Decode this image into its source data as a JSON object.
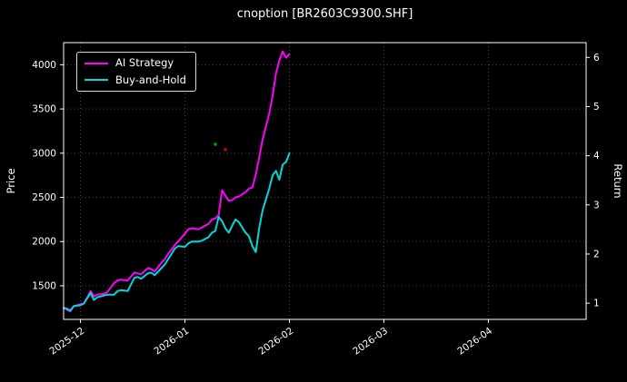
{
  "title": "cnoption [BR2603C9300.SHF]",
  "colors": {
    "background": "#000000",
    "axis": "#ffffff",
    "grid": "#4a4a4a",
    "text": "#ffffff",
    "ai_strategy": "#ff00ff",
    "buy_and_hold": "#00d8dc"
  },
  "axes": {
    "left_label": "Price",
    "right_label": "Return",
    "left_ticks": [
      1500,
      2000,
      2500,
      3000,
      3500,
      4000
    ],
    "right_ticks": [
      1,
      2,
      3,
      4,
      5,
      6
    ],
    "x_ticks": [
      {
        "label": "2025-12",
        "day": 5
      },
      {
        "label": "2026-01",
        "day": 36
      },
      {
        "label": "2026-02",
        "day": 67
      },
      {
        "label": "2026-03",
        "day": 95
      },
      {
        "label": "2026-04",
        "day": 126
      }
    ]
  },
  "chart_data": {
    "type": "line",
    "title": "cnoption [BR2603C9300.SHF]",
    "xlabel": "",
    "ylabel_left": "Price",
    "ylabel_right": "Return",
    "x_unit": "days since 2025-11-26",
    "x_day_range": [
      0,
      155
    ],
    "price_range": [
      1120,
      4250
    ],
    "return_range": [
      0.67,
      6.3
    ],
    "grid": "dotted",
    "legend_position": "upper-left",
    "series": [
      {
        "name": "AI Strategy",
        "axis": "left",
        "color": "#ff00ff",
        "points": [
          [
            0,
            1250
          ],
          [
            1,
            1230
          ],
          [
            2,
            1210
          ],
          [
            3,
            1270
          ],
          [
            5,
            1290
          ],
          [
            6,
            1300
          ],
          [
            8,
            1440
          ],
          [
            9,
            1380
          ],
          [
            10,
            1400
          ],
          [
            12,
            1410
          ],
          [
            13,
            1430
          ],
          [
            15,
            1530
          ],
          [
            16,
            1560
          ],
          [
            17,
            1570
          ],
          [
            19,
            1560
          ],
          [
            21,
            1650
          ],
          [
            22,
            1640
          ],
          [
            23,
            1630
          ],
          [
            25,
            1700
          ],
          [
            26,
            1690
          ],
          [
            27,
            1660
          ],
          [
            29,
            1760
          ],
          [
            30,
            1800
          ],
          [
            31,
            1860
          ],
          [
            33,
            1960
          ],
          [
            34,
            2000
          ],
          [
            36,
            2090
          ],
          [
            37,
            2140
          ],
          [
            38,
            2150
          ],
          [
            40,
            2140
          ],
          [
            41,
            2160
          ],
          [
            43,
            2200
          ],
          [
            44,
            2250
          ],
          [
            45,
            2260
          ],
          [
            46,
            2300
          ],
          [
            47,
            2580
          ],
          [
            48,
            2520
          ],
          [
            49,
            2460
          ],
          [
            50,
            2470
          ],
          [
            51,
            2500
          ],
          [
            52,
            2510
          ],
          [
            54,
            2560
          ],
          [
            55,
            2600
          ],
          [
            56,
            2610
          ],
          [
            57,
            2760
          ],
          [
            58,
            2950
          ],
          [
            59,
            3150
          ],
          [
            61,
            3450
          ],
          [
            62,
            3650
          ],
          [
            63,
            3900
          ],
          [
            64,
            4050
          ],
          [
            65,
            4150
          ],
          [
            66,
            4080
          ],
          [
            67,
            4120
          ]
        ]
      },
      {
        "name": "Buy-and-Hold",
        "axis": "left",
        "color": "#00d8dc",
        "points": [
          [
            0,
            1250
          ],
          [
            1,
            1240
          ],
          [
            2,
            1220
          ],
          [
            3,
            1270
          ],
          [
            5,
            1280
          ],
          [
            6,
            1300
          ],
          [
            8,
            1420
          ],
          [
            9,
            1340
          ],
          [
            10,
            1370
          ],
          [
            12,
            1390
          ],
          [
            13,
            1400
          ],
          [
            15,
            1400
          ],
          [
            16,
            1440
          ],
          [
            17,
            1450
          ],
          [
            19,
            1440
          ],
          [
            21,
            1590
          ],
          [
            22,
            1600
          ],
          [
            23,
            1580
          ],
          [
            25,
            1640
          ],
          [
            26,
            1650
          ],
          [
            27,
            1620
          ],
          [
            29,
            1700
          ],
          [
            30,
            1740
          ],
          [
            31,
            1800
          ],
          [
            33,
            1920
          ],
          [
            34,
            1950
          ],
          [
            36,
            1940
          ],
          [
            37,
            1980
          ],
          [
            38,
            2000
          ],
          [
            40,
            2000
          ],
          [
            41,
            2010
          ],
          [
            43,
            2050
          ],
          [
            44,
            2100
          ],
          [
            45,
            2120
          ],
          [
            46,
            2280
          ],
          [
            47,
            2230
          ],
          [
            48,
            2150
          ],
          [
            49,
            2100
          ],
          [
            50,
            2180
          ],
          [
            51,
            2250
          ],
          [
            52,
            2220
          ],
          [
            54,
            2100
          ],
          [
            55,
            2060
          ],
          [
            56,
            1950
          ],
          [
            57,
            1880
          ],
          [
            58,
            2150
          ],
          [
            59,
            2350
          ],
          [
            61,
            2600
          ],
          [
            62,
            2750
          ],
          [
            63,
            2800
          ],
          [
            64,
            2700
          ],
          [
            65,
            2870
          ],
          [
            66,
            2900
          ],
          [
            67,
            3000
          ]
        ]
      }
    ],
    "markers": [
      {
        "day": 45,
        "price": 3100,
        "color": "#00a000"
      },
      {
        "day": 48,
        "price": 3040,
        "color": "#d00000"
      }
    ]
  }
}
